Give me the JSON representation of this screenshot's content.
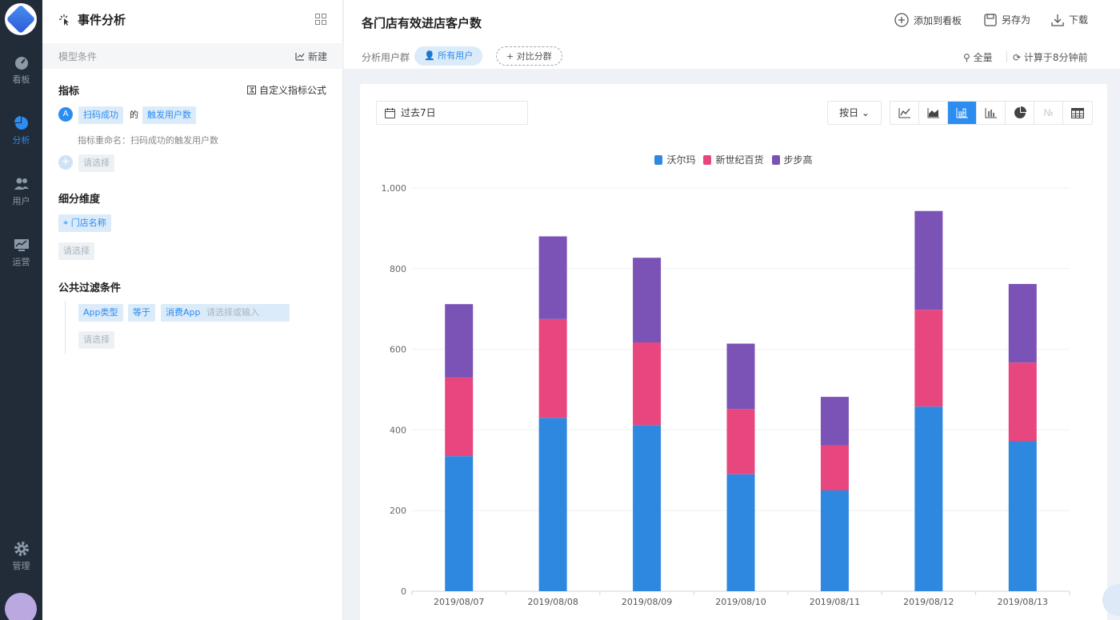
{
  "nav": {
    "items": [
      {
        "label": "看板",
        "icon": "dashboard-icon"
      },
      {
        "label": "分析",
        "icon": "pie-chart-icon"
      },
      {
        "label": "用户",
        "icon": "users-icon"
      },
      {
        "label": "运营",
        "icon": "monitor-icon"
      },
      {
        "label": "管理",
        "icon": "gear-icon"
      }
    ]
  },
  "panel": {
    "title": "事件分析",
    "model_label": "模型条件",
    "new_label": "新建",
    "metric_heading": "指标",
    "custom_formula": "自定义指标公式",
    "metric_badge": "A",
    "metric_event": "扫码成功",
    "metric_of": "的",
    "metric_measure": "触发用户数",
    "rename": "指标重命名：扫码成功的触发用户数",
    "select_placeholder": "请选择",
    "dimension_heading": "细分维度",
    "dimension_value": "门店名称",
    "filter_heading": "公共过滤条件",
    "filter_field": "App类型",
    "filter_op": "等于",
    "filter_value": "消费App",
    "filter_input_placeholder": "请选择或输入"
  },
  "header": {
    "title": "各门店有效进店客户数",
    "add_to_board": "添加到看板",
    "save_as": "另存为",
    "download": "下载",
    "segment_label": "分析用户群",
    "segment_all": "所有用户",
    "segment_compare": "+ 对比分群",
    "full": "全量",
    "computed": "计算于8分钟前"
  },
  "controls": {
    "date_range": "过去7日",
    "granularity": "按日 ⌄"
  },
  "chart_data": {
    "type": "bar",
    "stacked": true,
    "categories": [
      "2019/08/07",
      "2019/08/08",
      "2019/08/09",
      "2019/08/10",
      "2019/08/11",
      "2019/08/12",
      "2019/08/13"
    ],
    "series": [
      {
        "name": "沃尔玛",
        "color": "#2f88e0",
        "values": [
          335,
          430,
          412,
          290,
          250,
          458,
          372
        ]
      },
      {
        "name": "新世纪百货",
        "color": "#e8467e",
        "values": [
          195,
          245,
          205,
          162,
          112,
          240,
          195
        ]
      },
      {
        "name": "步步高",
        "color": "#7b52b6",
        "values": [
          182,
          205,
          210,
          162,
          120,
          245,
          195
        ]
      }
    ],
    "ylim": [
      0,
      1000
    ],
    "yticks": [
      "0",
      "200",
      "400",
      "600",
      "800",
      "1,000"
    ],
    "grid": true,
    "legend_position": "top-center"
  }
}
